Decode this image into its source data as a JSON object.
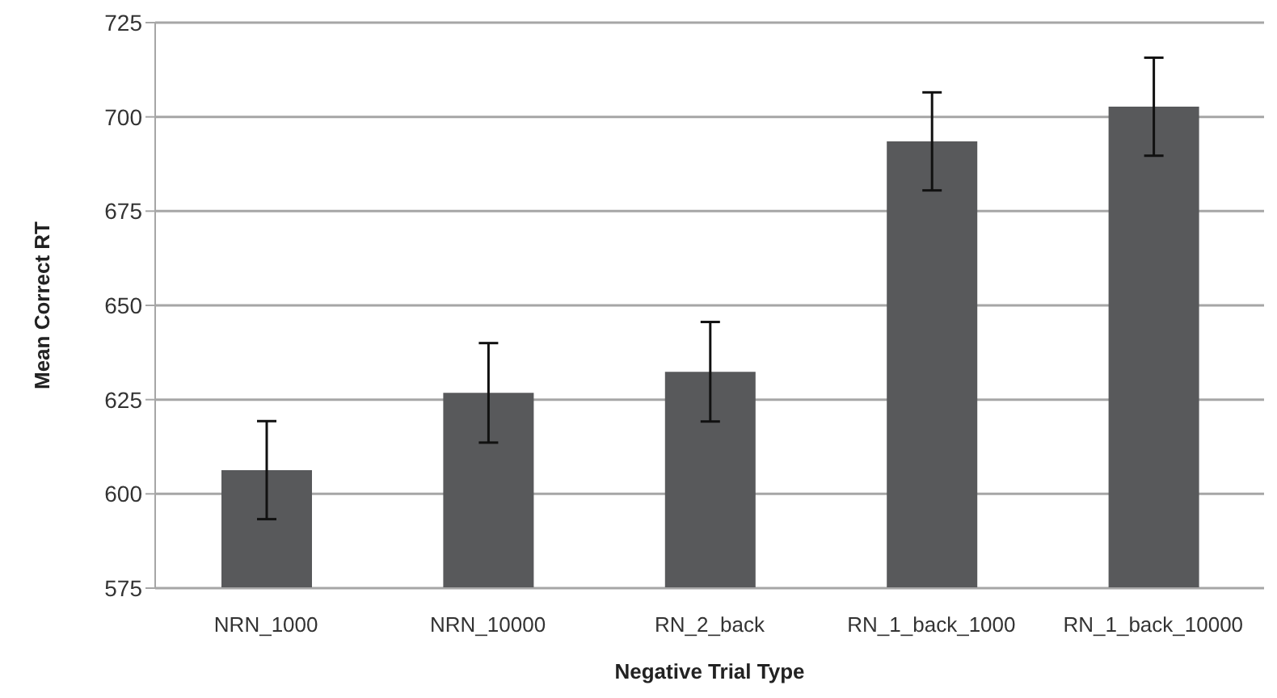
{
  "chart_data": {
    "type": "bar",
    "xlabel": "Negative Trial Type",
    "ylabel": "Mean Correct RT",
    "categories": [
      "NRN_1000",
      "NRN_10000",
      "RN_2_back",
      "RN_1_back_1000",
      "RN_1_back_10000"
    ],
    "values": [
      606.3,
      626.8,
      632.4,
      693.5,
      702.7
    ],
    "errors": [
      13,
      13.2,
      13.2,
      13,
      13
    ],
    "color": "#58595b",
    "ylim": [
      575,
      725
    ],
    "yticks": [
      575,
      600,
      625,
      650,
      675,
      700,
      725
    ],
    "grid": "y"
  }
}
